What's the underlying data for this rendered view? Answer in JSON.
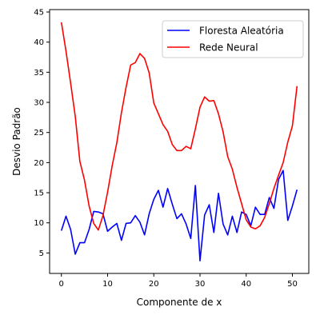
{
  "chart_data": {
    "type": "line",
    "title": "",
    "xlabel": "Componente de x",
    "ylabel": "Desvio Padrão",
    "xlim": [
      -2.55,
      53.55
    ],
    "ylim": [
      1.6,
      45.4
    ],
    "xticks": [
      0,
      10,
      20,
      30,
      40,
      50
    ],
    "yticks": [
      5,
      10,
      15,
      20,
      25,
      30,
      35,
      40,
      45
    ],
    "grid": false,
    "legend_position": "top-right",
    "series": [
      {
        "name": "Floresta Aleatória",
        "color": "#0000ff",
        "x": [
          0,
          1,
          2,
          3,
          4,
          5,
          6,
          7,
          8,
          9,
          10,
          11,
          12,
          13,
          14,
          15,
          16,
          17,
          18,
          19,
          20,
          21,
          22,
          23,
          24,
          25,
          26,
          27,
          28,
          29,
          30,
          31,
          32,
          33,
          34,
          35,
          36,
          37,
          38,
          39,
          40,
          41,
          42,
          43,
          44,
          45,
          46,
          47,
          48,
          49,
          50,
          51
        ],
        "y": [
          8.7,
          11.1,
          8.9,
          4.8,
          6.7,
          6.7,
          8.9,
          11.9,
          11.8,
          11.5,
          8.6,
          9.3,
          9.9,
          7.1,
          9.9,
          10.0,
          11.2,
          10.1,
          8.0,
          11.5,
          13.9,
          15.4,
          12.6,
          15.7,
          13.1,
          10.7,
          11.5,
          9.8,
          7.4,
          16.2,
          3.7,
          11.3,
          13.0,
          8.4,
          14.9,
          9.8,
          8.0,
          11.1,
          8.4,
          11.8,
          11.4,
          9.5,
          12.6,
          11.4,
          11.4,
          14.2,
          12.4,
          17.2,
          18.7,
          10.4,
          12.8,
          15.5
        ]
      },
      {
        "name": "Rede Neural",
        "color": "#ff0000",
        "x": [
          0,
          1,
          2,
          3,
          4,
          5,
          6,
          7,
          8,
          9,
          10,
          11,
          12,
          13,
          14,
          15,
          16,
          17,
          18,
          19,
          20,
          21,
          22,
          23,
          24,
          25,
          26,
          27,
          28,
          29,
          30,
          31,
          32,
          33,
          34,
          35,
          36,
          37,
          38,
          39,
          40,
          41,
          42,
          43,
          44,
          45,
          46,
          47,
          48,
          49,
          50,
          51
        ],
        "y": [
          43.3,
          38.5,
          33.2,
          27.7,
          20.2,
          17.1,
          12.8,
          9.9,
          8.8,
          11.2,
          15.1,
          19.5,
          23.3,
          28.3,
          32.5,
          36.2,
          36.6,
          38.1,
          37.3,
          34.9,
          29.9,
          28.1,
          26.3,
          25.2,
          23.0,
          22.0,
          22.0,
          22.7,
          22.3,
          25.6,
          29.2,
          30.9,
          30.2,
          30.3,
          28.1,
          25.1,
          21.0,
          18.9,
          15.9,
          13.2,
          10.5,
          9.3,
          9.0,
          9.5,
          10.9,
          13.2,
          15.7,
          17.9,
          20.0,
          23.4,
          26.1,
          32.7
        ]
      }
    ]
  }
}
